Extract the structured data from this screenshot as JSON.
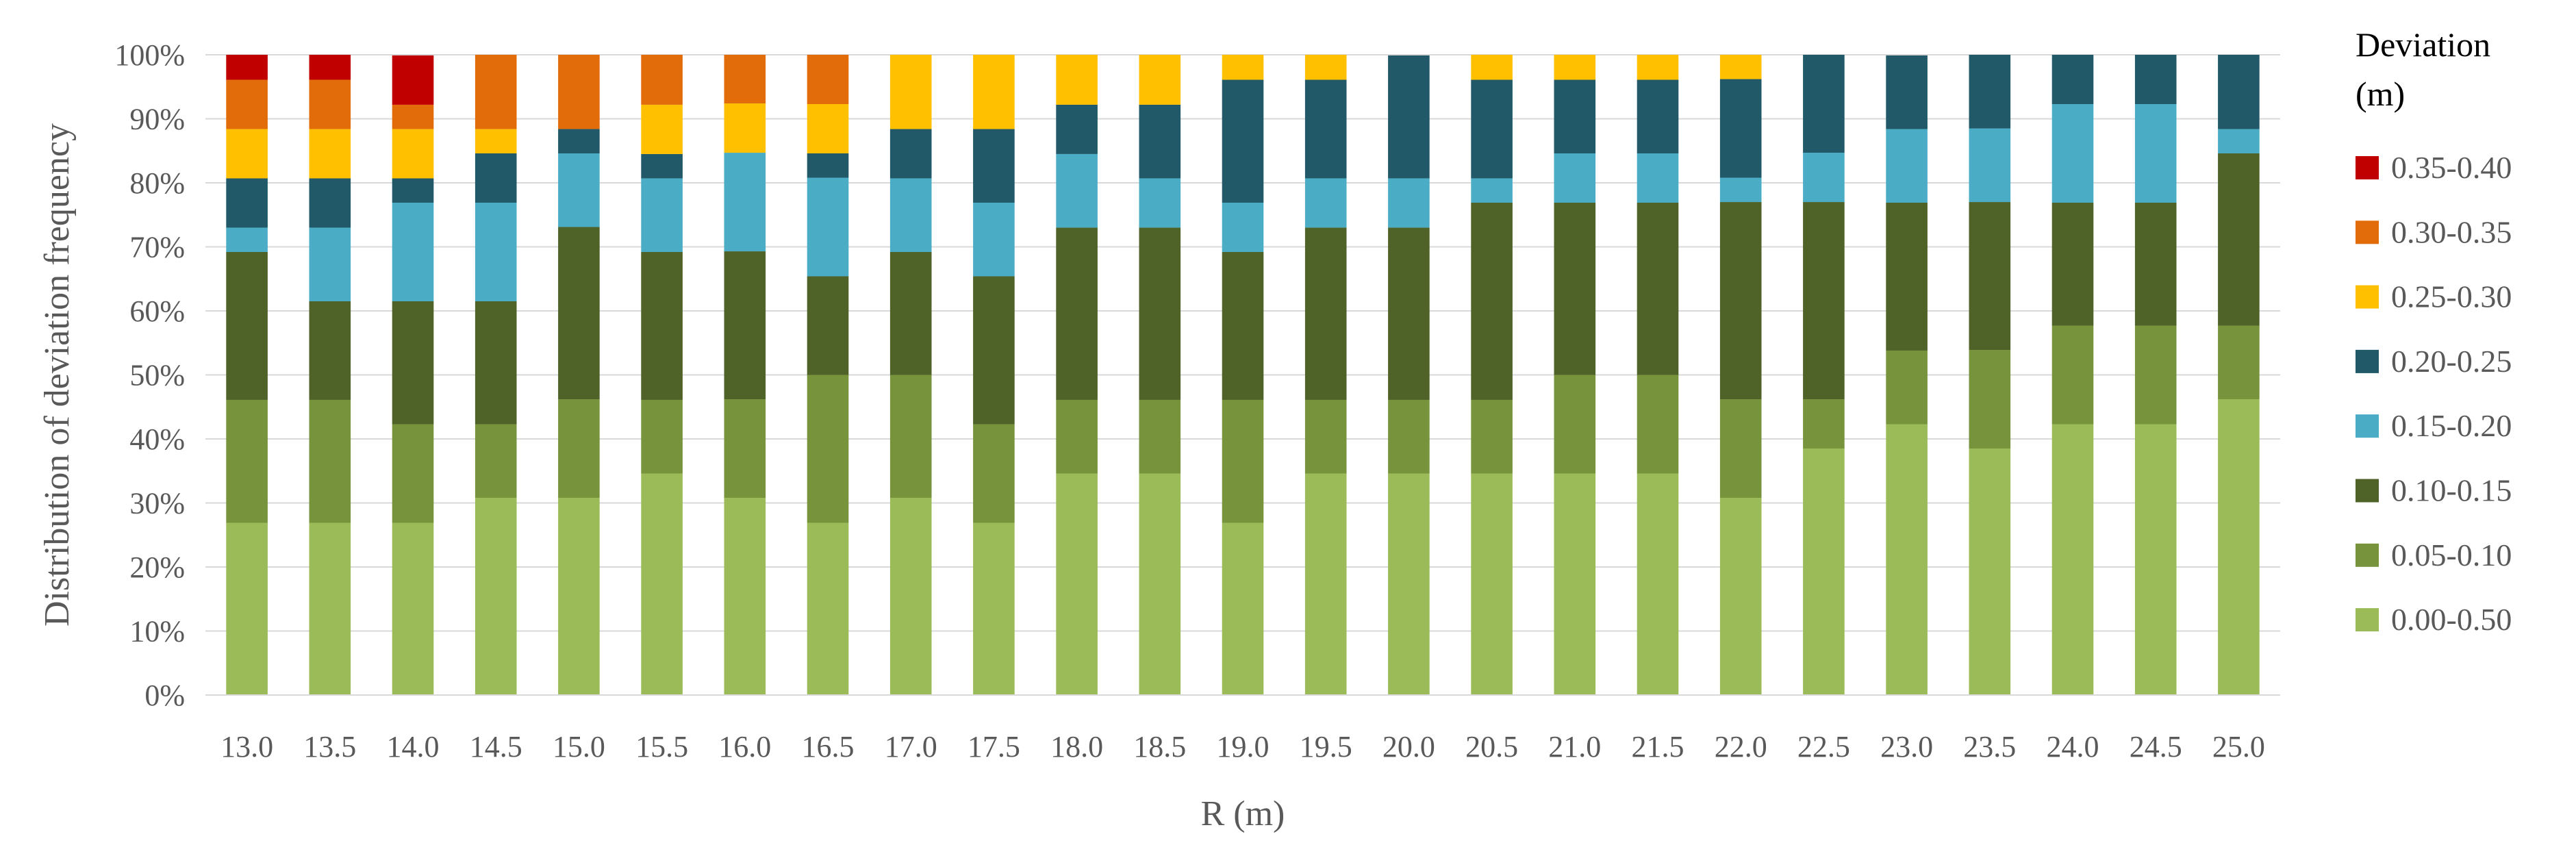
{
  "chart_data": {
    "type": "bar",
    "stacked": true,
    "percent_stacked": true,
    "title": "",
    "xlabel": "R (m)",
    "ylabel": "Distribution of deviation frequency",
    "ylim": [
      0,
      100
    ],
    "y_ticks": [
      "0%",
      "10%",
      "20%",
      "30%",
      "40%",
      "50%",
      "60%",
      "70%",
      "80%",
      "90%",
      "100%"
    ],
    "grid": true,
    "legend_position": "right",
    "legend_title": "Deviation (m)",
    "legend_title_lines": [
      "Deviation",
      "(m)"
    ],
    "categories": [
      "13.0",
      "13.5",
      "14.0",
      "14.5",
      "15.0",
      "15.5",
      "16.0",
      "16.5",
      "17.0",
      "17.5",
      "18.0",
      "18.5",
      "19.0",
      "19.5",
      "20.0",
      "20.5",
      "21.0",
      "21.5",
      "22.0",
      "22.5",
      "23.0",
      "23.5",
      "24.0",
      "24.5",
      "25.0"
    ],
    "series": [
      {
        "name": "0.00-0.50",
        "color": "#9BBB59",
        "values": [
          26.9,
          26.9,
          26.9,
          30.8,
          30.8,
          34.6,
          30.8,
          26.9,
          30.8,
          26.9,
          34.6,
          34.6,
          26.9,
          34.6,
          34.6,
          34.6,
          34.6,
          34.6,
          30.8,
          38.5,
          42.3,
          38.5,
          42.3,
          42.3,
          46.2
        ]
      },
      {
        "name": "0.05-0.10",
        "color": "#77933C",
        "values": [
          19.2,
          19.2,
          15.4,
          11.5,
          15.4,
          11.5,
          15.4,
          23.1,
          19.2,
          15.4,
          11.5,
          11.5,
          19.2,
          11.5,
          11.5,
          11.5,
          15.4,
          15.4,
          15.4,
          7.7,
          11.5,
          15.4,
          15.4,
          15.4,
          11.5
        ]
      },
      {
        "name": "0.10-0.15",
        "color": "#4F6228",
        "values": [
          23.1,
          15.4,
          19.2,
          19.2,
          26.9,
          23.1,
          23.1,
          15.4,
          19.2,
          23.1,
          26.9,
          26.9,
          23.1,
          26.9,
          26.9,
          30.8,
          26.9,
          26.9,
          30.8,
          30.8,
          23.1,
          23.1,
          19.2,
          19.2,
          26.9
        ]
      },
      {
        "name": "0.15-0.20",
        "color": "#4BACC6",
        "values": [
          3.8,
          11.5,
          15.4,
          15.4,
          11.5,
          11.5,
          15.4,
          15.4,
          11.5,
          11.5,
          11.5,
          7.7,
          7.7,
          7.7,
          7.7,
          3.8,
          7.7,
          7.7,
          3.8,
          7.7,
          11.5,
          11.5,
          15.4,
          15.4,
          3.8
        ]
      },
      {
        "name": "0.20-0.25",
        "color": "#215968",
        "values": [
          7.7,
          7.7,
          3.8,
          7.7,
          3.8,
          3.8,
          0,
          3.8,
          7.7,
          11.5,
          7.7,
          11.5,
          19.2,
          15.4,
          19.2,
          15.4,
          11.5,
          11.5,
          15.4,
          15.4,
          11.5,
          11.5,
          7.7,
          7.7,
          11.6
        ]
      },
      {
        "name": "0.25-0.30",
        "color": "#FFC000",
        "values": [
          7.7,
          7.7,
          7.7,
          3.8,
          0,
          7.7,
          7.7,
          7.7,
          11.6,
          11.6,
          7.8,
          7.8,
          3.9,
          3.9,
          0,
          3.9,
          3.9,
          3.9,
          3.9,
          0,
          0,
          0,
          0,
          0,
          0
        ]
      },
      {
        "name": "0.30-0.35",
        "color": "#E36C0A",
        "values": [
          7.7,
          7.7,
          3.8,
          11.6,
          11.6,
          7.8,
          7.6,
          7.7,
          0,
          0,
          0,
          0,
          0,
          0,
          0,
          0,
          0,
          0,
          0,
          0,
          0,
          0,
          0,
          0,
          0
        ]
      },
      {
        "name": "0.35-0.40",
        "color": "#C00000",
        "values": [
          3.9,
          3.9,
          7.7,
          0,
          0,
          0,
          0,
          0,
          0,
          0,
          0,
          0,
          0,
          0,
          0,
          0,
          0,
          0,
          0,
          0,
          0,
          0,
          0,
          0,
          0
        ]
      }
    ]
  }
}
